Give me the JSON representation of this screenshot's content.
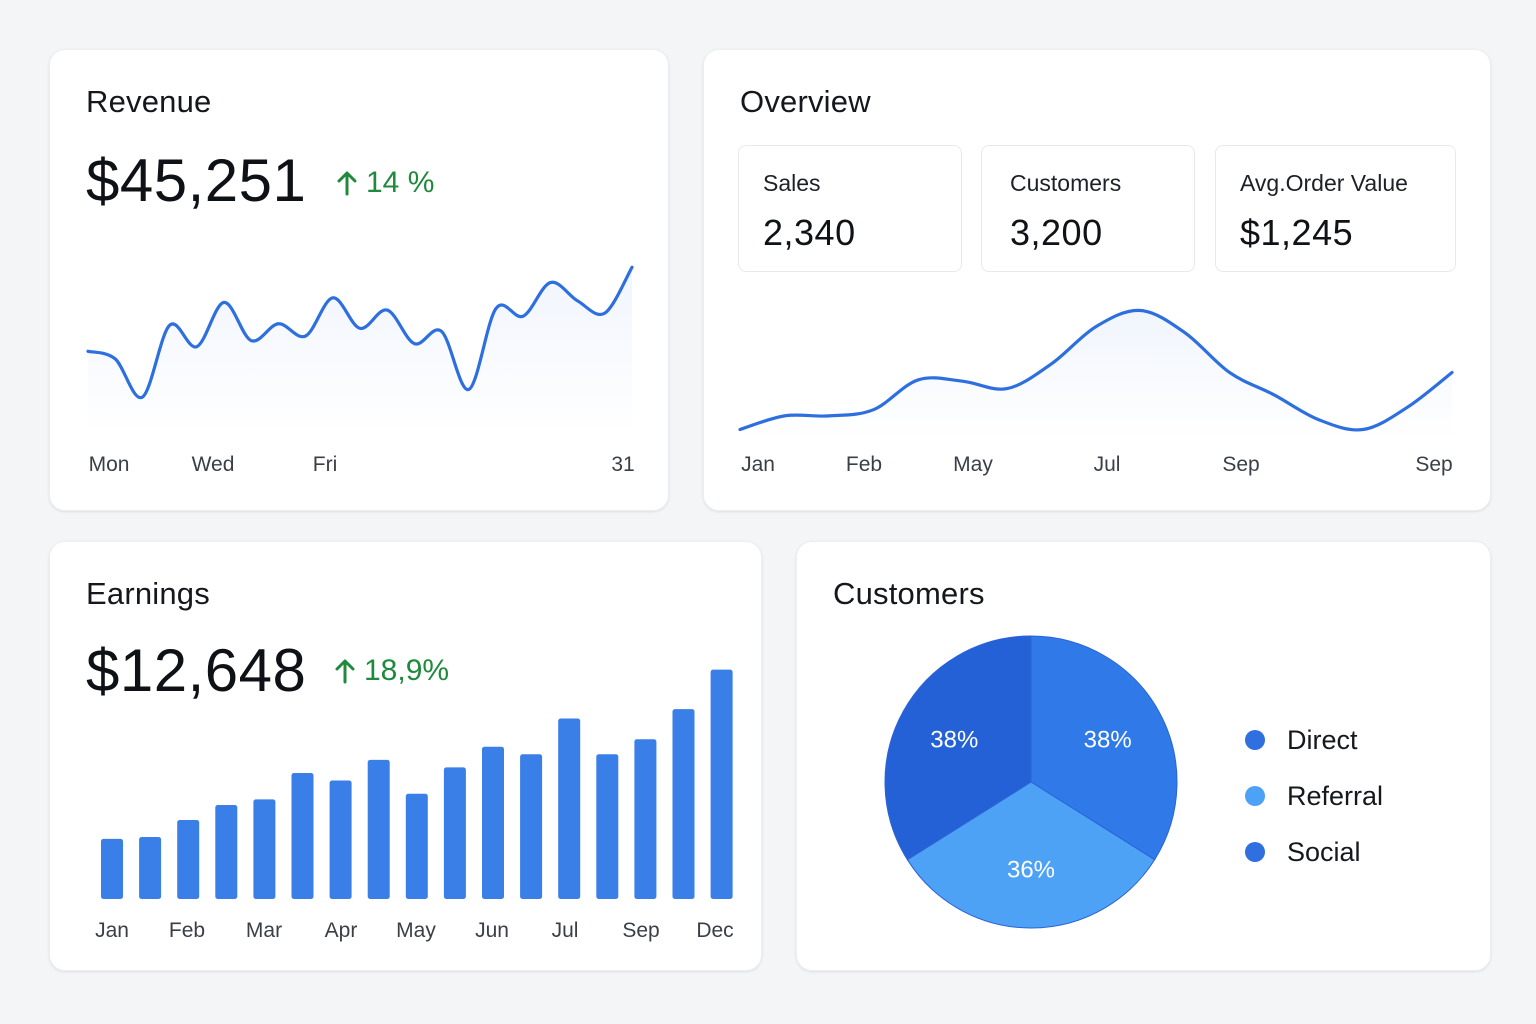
{
  "revenue": {
    "title": "Revenue",
    "value": "$45,251",
    "delta": "14 %",
    "x_labels": [
      "Mon",
      "Wed",
      "Fri",
      "31"
    ]
  },
  "overview": {
    "title": "Overview",
    "stats": [
      {
        "label": "Sales",
        "value": "2,340"
      },
      {
        "label": "Customers",
        "value": "3,200"
      },
      {
        "label": "Avg.Order Value",
        "value": "$1,245"
      }
    ],
    "x_labels": [
      "Jan",
      "Feb",
      "May",
      "Jul",
      "Sep",
      "Sep"
    ]
  },
  "earnings": {
    "title": "Earnings",
    "value": "$12,648",
    "delta": "18,9%",
    "x_labels": [
      "Jan",
      "Feb",
      "Mar",
      "Apr",
      "May",
      "Jun",
      "Jul",
      "Sep",
      "Dec"
    ]
  },
  "customers": {
    "title": "Customers",
    "legend": [
      {
        "name": "Direct",
        "color": "#2f6fe0"
      },
      {
        "name": "Referral",
        "color": "#4da2f5"
      },
      {
        "name": "Social",
        "color": "#2f6fe0"
      }
    ]
  },
  "colors": {
    "line": "#2e6fe0",
    "bar": "#3a7ee8",
    "positive": "#1f8a3b"
  },
  "chart_data": [
    {
      "id": "revenue-line",
      "type": "area",
      "x_labels": [
        "Mon",
        "Wed",
        "Fri",
        "31"
      ],
      "values": [
        0.45,
        0.4,
        0.15,
        0.62,
        0.48,
        0.77,
        0.52,
        0.63,
        0.55,
        0.8,
        0.6,
        0.72,
        0.5,
        0.58,
        0.2,
        0.73,
        0.68,
        0.9,
        0.78,
        0.7,
        1.0
      ],
      "ylim": [
        0,
        1.1
      ]
    },
    {
      "id": "overview-line",
      "type": "area",
      "x_labels": [
        "Jan",
        "Feb",
        "May",
        "Jul",
        "Sep",
        "Sep"
      ],
      "values": [
        0.02,
        0.13,
        0.13,
        0.18,
        0.42,
        0.41,
        0.35,
        0.55,
        0.85,
        0.98,
        0.8,
        0.48,
        0.3,
        0.1,
        0.02,
        0.2,
        0.48
      ],
      "ylim": [
        0,
        1.0
      ]
    },
    {
      "id": "earnings-bars",
      "type": "bar",
      "values": [
        3.2,
        3.3,
        4.2,
        5.0,
        5.3,
        6.7,
        6.3,
        7.4,
        5.6,
        7.0,
        8.1,
        7.7,
        9.6,
        7.7,
        8.5,
        10.1,
        12.2
      ],
      "ylim": [
        0,
        12.5
      ]
    },
    {
      "id": "customers-pie",
      "type": "pie",
      "slices": [
        {
          "label": "38%",
          "value": 38,
          "color": "#2f7ae8"
        },
        {
          "label": "36%",
          "value": 36,
          "color": "#4da2f5"
        },
        {
          "label": "38%",
          "value": 38,
          "color": "#2561d6"
        }
      ]
    }
  ]
}
